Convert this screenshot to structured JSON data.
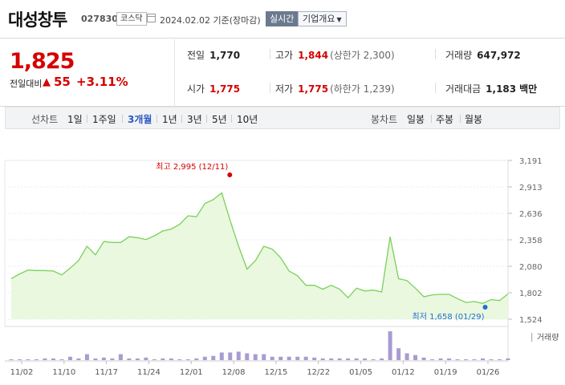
{
  "header": {
    "name": "대성창투",
    "code": "027830",
    "market": "코스닥",
    "date": "2024.02.02",
    "basis": "기준(장마감)",
    "realtime_label": "실시간",
    "company_label": "기업개요"
  },
  "quote": {
    "price": "1,825",
    "change_label": "전일대비",
    "change_value": "55",
    "change_pct": "+3.11%",
    "prev_close_label": "전일",
    "prev_close": "1,770",
    "high_label": "고가",
    "high": "1,844",
    "upper_limit": "(상한가 2,300)",
    "volume_label": "거래량",
    "volume": "647,972",
    "open_label": "시가",
    "open": "1,775",
    "low_label": "저가",
    "low": "1,775",
    "lower_limit": "(하한가 1,239)",
    "amount_label": "거래대금",
    "amount": "1,183",
    "amount_unit": "백만"
  },
  "tabs": {
    "line_label": "선차트",
    "periods": [
      "1일",
      "1주일",
      "3개월",
      "1년",
      "3년",
      "5년",
      "10년"
    ],
    "active": "3개월",
    "candle_label": "봉차트",
    "candles": [
      "일봉",
      "주봉",
      "월봉"
    ]
  },
  "colors": {
    "up": "#d60000",
    "line": "#7bd15a",
    "fill": "#e9f8df",
    "volume": "#a99bd3",
    "accent": "#2b58c4"
  },
  "chart_data": {
    "type": "area",
    "yticks": [
      "3,191",
      "2,913",
      "2,636",
      "2,358",
      "2,080",
      "1,802",
      "1,524"
    ],
    "ylim": [
      1524,
      3191
    ],
    "xticks": [
      "11/02",
      "11/10",
      "11/17",
      "11/24",
      "12/01",
      "12/08",
      "12/15",
      "12/22",
      "01/05",
      "01/12",
      "01/19",
      "01/26"
    ],
    "high_annotation": "최고 2,995 (12/11)",
    "low_annotation": "최저 1,658 (01/29)",
    "volume_label": "거래량",
    "values": [
      1950,
      2000,
      2040,
      2035,
      2035,
      2030,
      1990,
      2060,
      2140,
      2290,
      2200,
      2340,
      2330,
      2330,
      2390,
      2380,
      2360,
      2400,
      2450,
      2470,
      2520,
      2610,
      2600,
      2740,
      2780,
      2850,
      2560,
      2290,
      2050,
      2140,
      2290,
      2260,
      2170,
      2030,
      1980,
      1880,
      1880,
      1840,
      1880,
      1840,
      1750,
      1850,
      1820,
      1830,
      1810,
      2390,
      1950,
      1930,
      1850,
      1760,
      1780,
      1785,
      1785,
      1740,
      1700,
      1710,
      1690,
      1730,
      1720,
      1790
    ],
    "volumes": [
      1,
      1,
      1,
      1,
      2,
      2,
      1,
      4,
      2,
      7,
      2,
      3,
      2,
      7,
      2,
      2,
      3,
      1,
      2,
      2,
      1,
      1,
      2,
      4,
      5,
      9,
      9,
      10,
      8,
      7,
      7,
      4,
      4,
      4,
      4,
      4,
      3,
      2,
      2,
      2,
      2,
      2,
      2,
      1,
      2,
      34,
      14,
      8,
      6,
      3,
      1,
      2,
      2,
      1,
      1,
      1,
      2,
      1,
      1,
      2
    ]
  }
}
